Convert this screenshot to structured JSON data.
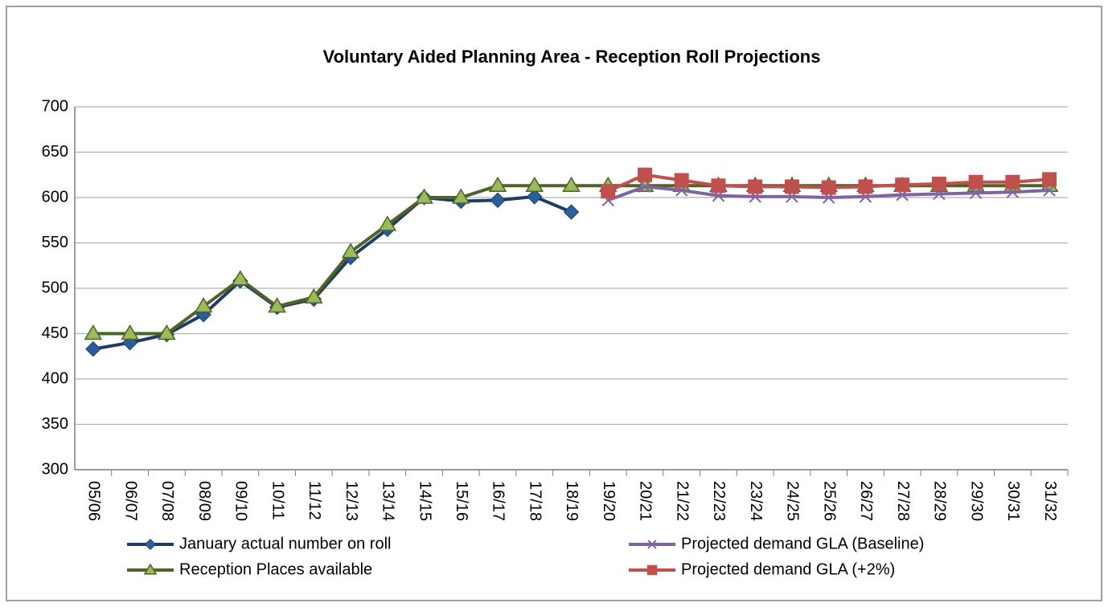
{
  "chart_data": {
    "type": "line",
    "title": "Voluntary Aided Planning Area - Reception Roll Projections",
    "categories": [
      "05/06",
      "06/07",
      "07/08",
      "08/09",
      "09/10",
      "10/11",
      "11/12",
      "12/13",
      "13/14",
      "14/15",
      "15/16",
      "16/17",
      "17/18",
      "18/19",
      "19/20",
      "20/21",
      "21/22",
      "22/23",
      "23/24",
      "24/25",
      "25/26",
      "26/27",
      "27/28",
      "28/29",
      "29/30",
      "30/31",
      "31/32"
    ],
    "series": [
      {
        "name": "January actual number on roll",
        "color": "#1f3b66",
        "marker": "diamond",
        "values": [
          433,
          440,
          449,
          471,
          508,
          479,
          488,
          534,
          565,
          600,
          596,
          597,
          601,
          584,
          null,
          null,
          null,
          null,
          null,
          null,
          null,
          null,
          null,
          null,
          null,
          null,
          null
        ]
      },
      {
        "name": "Reception Places available",
        "color": "#4f6228",
        "marker": "triangle",
        "values": [
          450,
          450,
          450,
          480,
          510,
          480,
          490,
          540,
          570,
          600,
          600,
          613,
          613,
          613,
          613,
          613,
          613,
          613,
          613,
          613,
          613,
          613,
          613,
          613,
          613,
          613,
          613
        ]
      },
      {
        "name": "Projected demand GLA (Baseline)",
        "color": "#8064a2",
        "marker": "x",
        "values": [
          null,
          null,
          null,
          null,
          null,
          null,
          null,
          null,
          null,
          null,
          null,
          null,
          null,
          null,
          597,
          612,
          608,
          602,
          601,
          601,
          600,
          601,
          603,
          604,
          605,
          606,
          608
        ]
      },
      {
        "name": "Projected demand GLA (+2%)",
        "color": "#c0504d",
        "marker": "square",
        "values": [
          null,
          null,
          null,
          null,
          null,
          null,
          null,
          null,
          null,
          null,
          null,
          null,
          null,
          null,
          607,
          625,
          619,
          613,
          612,
          612,
          611,
          612,
          614,
          615,
          617,
          617,
          620
        ]
      }
    ],
    "ylim": [
      300,
      700
    ],
    "yticks": [
      300,
      350,
      400,
      450,
      500,
      550,
      600,
      650,
      700
    ],
    "grid": true,
    "legend": "bottom"
  }
}
